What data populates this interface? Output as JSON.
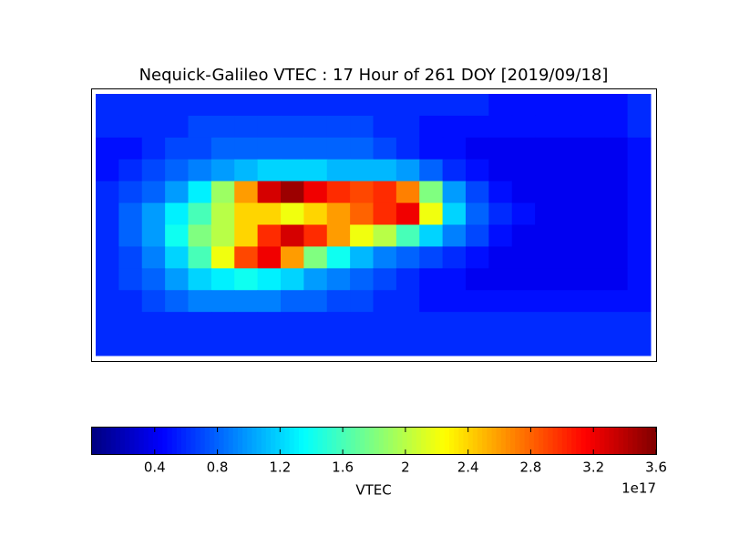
{
  "chart_data": {
    "type": "heatmap",
    "title": "Nequick-Galileo VTEC : 17 Hour of 261 DOY [2019/09/18]",
    "colormap": "jet",
    "colorbar_label": "VTEC",
    "colorbar_offset": "1e17",
    "clim": [
      0,
      3.6
    ],
    "cticks": [
      0.4,
      0.8,
      1.2,
      1.6,
      2.0,
      2.4,
      2.8,
      3.2,
      3.6
    ],
    "z": [
      [
        0.6,
        0.6,
        0.6,
        0.6,
        0.6,
        0.6,
        0.6,
        0.6,
        0.6,
        0.6,
        0.6,
        0.6,
        0.6,
        0.6,
        0.6,
        0.6,
        0.6,
        0.5,
        0.5,
        0.5,
        0.5,
        0.5,
        0.5,
        0.6
      ],
      [
        0.6,
        0.6,
        0.6,
        0.6,
        0.7,
        0.7,
        0.7,
        0.7,
        0.7,
        0.7,
        0.7,
        0.7,
        0.6,
        0.6,
        0.5,
        0.5,
        0.5,
        0.5,
        0.5,
        0.5,
        0.5,
        0.5,
        0.5,
        0.6
      ],
      [
        0.5,
        0.5,
        0.6,
        0.7,
        0.7,
        0.8,
        0.8,
        0.8,
        0.8,
        0.8,
        0.8,
        0.8,
        0.7,
        0.6,
        0.5,
        0.5,
        0.4,
        0.4,
        0.4,
        0.4,
        0.4,
        0.4,
        0.4,
        0.5
      ],
      [
        0.5,
        0.6,
        0.7,
        0.8,
        0.9,
        1.0,
        1.1,
        1.2,
        1.2,
        1.2,
        1.1,
        1.1,
        1.1,
        1.0,
        0.8,
        0.6,
        0.5,
        0.4,
        0.4,
        0.4,
        0.4,
        0.4,
        0.4,
        0.5
      ],
      [
        0.6,
        0.7,
        0.8,
        1.0,
        1.3,
        1.9,
        2.6,
        3.3,
        3.5,
        3.2,
        3.0,
        2.9,
        3.0,
        2.7,
        1.8,
        1.0,
        0.7,
        0.5,
        0.4,
        0.4,
        0.4,
        0.4,
        0.4,
        0.5
      ],
      [
        0.6,
        0.8,
        1.0,
        1.3,
        1.6,
        2.0,
        2.4,
        2.4,
        2.2,
        2.4,
        2.6,
        2.8,
        3.0,
        3.2,
        2.2,
        1.2,
        0.8,
        0.6,
        0.5,
        0.4,
        0.4,
        0.4,
        0.4,
        0.5
      ],
      [
        0.6,
        0.8,
        1.0,
        1.4,
        1.8,
        2.0,
        2.4,
        3.0,
        3.3,
        3.0,
        2.6,
        2.2,
        2.0,
        1.6,
        1.2,
        0.9,
        0.7,
        0.5,
        0.4,
        0.4,
        0.4,
        0.4,
        0.4,
        0.5
      ],
      [
        0.6,
        0.7,
        0.9,
        1.2,
        1.6,
        2.2,
        2.9,
        3.2,
        2.6,
        1.8,
        1.4,
        1.1,
        0.9,
        0.8,
        0.7,
        0.6,
        0.5,
        0.4,
        0.4,
        0.4,
        0.4,
        0.4,
        0.4,
        0.5
      ],
      [
        0.6,
        0.7,
        0.8,
        1.0,
        1.2,
        1.3,
        1.4,
        1.3,
        1.2,
        1.0,
        0.9,
        0.8,
        0.7,
        0.6,
        0.5,
        0.5,
        0.4,
        0.4,
        0.4,
        0.4,
        0.4,
        0.4,
        0.4,
        0.5
      ],
      [
        0.6,
        0.6,
        0.7,
        0.8,
        0.9,
        0.9,
        0.9,
        0.9,
        0.8,
        0.8,
        0.7,
        0.7,
        0.6,
        0.6,
        0.5,
        0.5,
        0.5,
        0.5,
        0.5,
        0.5,
        0.5,
        0.5,
        0.5,
        0.5
      ],
      [
        0.6,
        0.6,
        0.6,
        0.6,
        0.6,
        0.6,
        0.6,
        0.6,
        0.6,
        0.6,
        0.6,
        0.6,
        0.6,
        0.6,
        0.6,
        0.6,
        0.6,
        0.6,
        0.6,
        0.6,
        0.6,
        0.6,
        0.6,
        0.6
      ],
      [
        0.6,
        0.6,
        0.6,
        0.6,
        0.6,
        0.6,
        0.6,
        0.6,
        0.6,
        0.6,
        0.6,
        0.6,
        0.6,
        0.6,
        0.6,
        0.6,
        0.6,
        0.6,
        0.6,
        0.6,
        0.6,
        0.6,
        0.6,
        0.6
      ]
    ]
  }
}
